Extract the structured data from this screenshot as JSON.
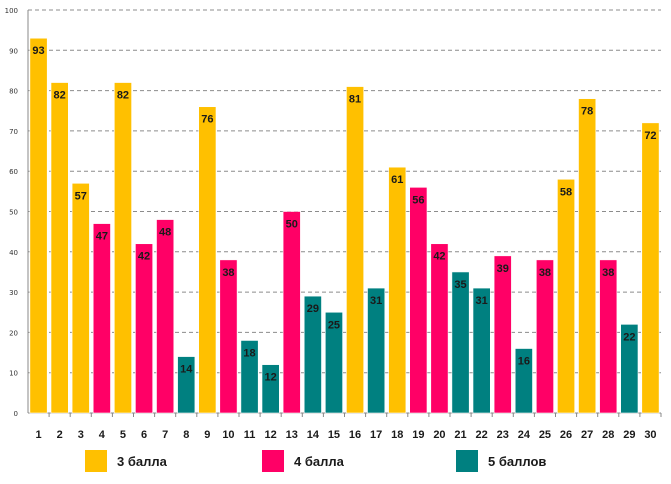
{
  "chart_data": {
    "type": "bar",
    "title": "",
    "xlabel": "",
    "ylabel": "",
    "ylim": [
      0,
      100
    ],
    "yticks": [
      0,
      10,
      20,
      30,
      40,
      50,
      60,
      70,
      80,
      90,
      100
    ],
    "grid": true,
    "categories": [
      "1",
      "2",
      "3",
      "4",
      "5",
      "6",
      "7",
      "8",
      "9",
      "10",
      "11",
      "12",
      "13",
      "14",
      "15",
      "16",
      "17",
      "18",
      "19",
      "20",
      "21",
      "22",
      "23",
      "24",
      "25",
      "26",
      "27",
      "28",
      "29",
      "30"
    ],
    "values": [
      93,
      82,
      57,
      47,
      82,
      42,
      48,
      14,
      76,
      38,
      18,
      12,
      50,
      29,
      25,
      81,
      31,
      61,
      56,
      42,
      35,
      31,
      39,
      16,
      38,
      58,
      78,
      38,
      22,
      72
    ],
    "groups": [
      "g3",
      "g3",
      "g3",
      "g4",
      "g3",
      "g4",
      "g4",
      "g5",
      "g3",
      "g4",
      "g5",
      "g5",
      "g4",
      "g5",
      "g5",
      "g3",
      "g5",
      "g3",
      "g4",
      "g4",
      "g5",
      "g5",
      "g4",
      "g5",
      "g4",
      "g3",
      "g3",
      "g4",
      "g5",
      "g3"
    ],
    "legend": [
      {
        "key": "g3",
        "label": "3 балла",
        "color": "#FFC000"
      },
      {
        "key": "g4",
        "label": "4 балла",
        "color": "#FF0066"
      },
      {
        "key": "g5",
        "label": "5 баллов",
        "color": "#008080"
      }
    ],
    "legend_position": "bottom"
  }
}
